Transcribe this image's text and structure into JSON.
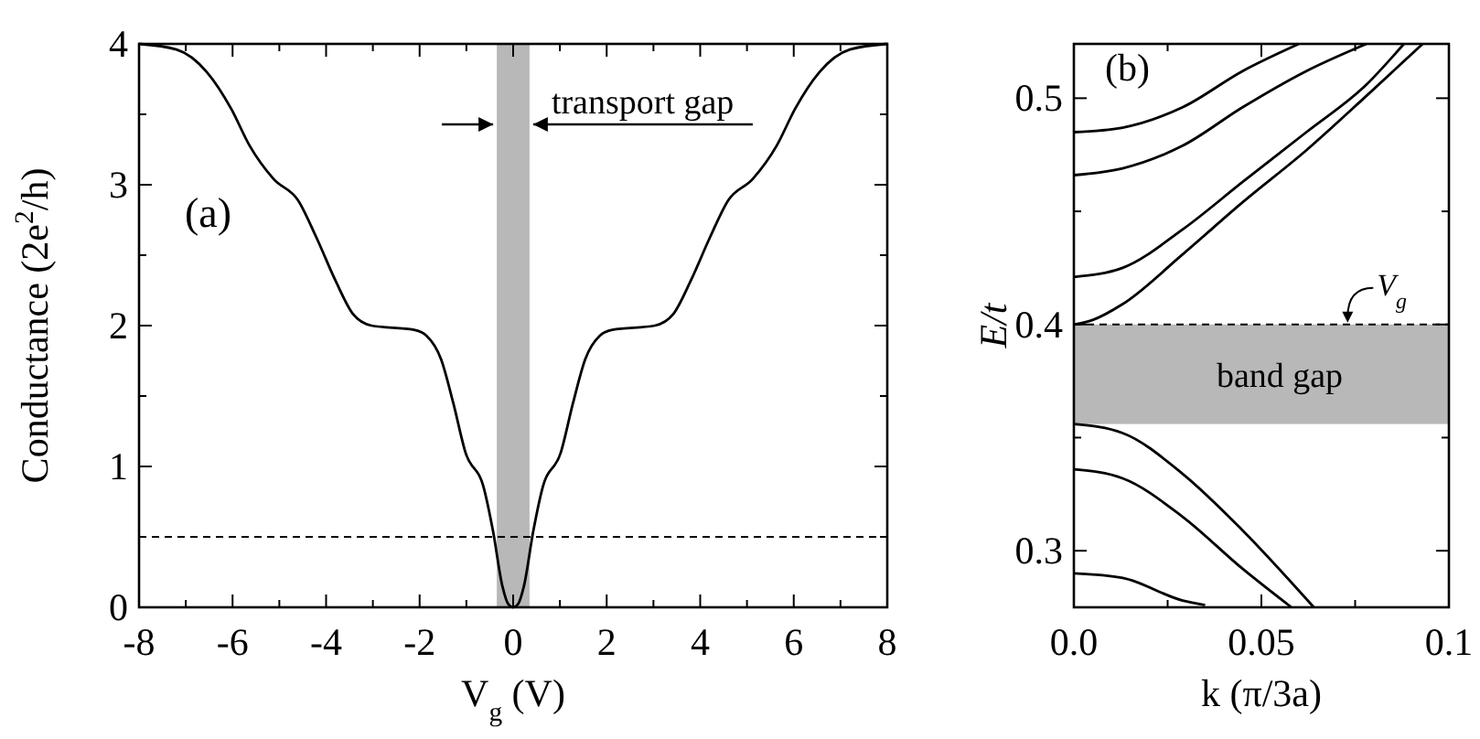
{
  "chart_data": [
    {
      "type": "line",
      "xlabel": "V$_{g}$ (V)",
      "ylabel": "Conductance (2e$^{2}$/h)",
      "x": [
        -8,
        -7.2,
        -6.55,
        -6.03,
        -5.64,
        -5.12,
        -4.6,
        -4.2,
        -3.8,
        -3.42,
        -3.03,
        -2.12,
        -1.86,
        -1.54,
        -1.28,
        -1.02,
        -0.63,
        -0.43,
        -0.23,
        -0.1,
        0,
        0.1,
        0.23,
        0.43,
        0.63,
        1.02,
        1.28,
        1.54,
        1.86,
        2.12,
        3.03,
        3.42,
        3.8,
        4.2,
        4.6,
        5.12,
        5.64,
        6.03,
        6.55,
        7.2,
        8
      ],
      "series": [
        {
          "color": "#000000",
          "values": [
            4.0,
            3.96,
            3.8,
            3.54,
            3.28,
            3.04,
            2.89,
            2.62,
            2.32,
            2.08,
            2.0,
            1.97,
            1.93,
            1.76,
            1.45,
            1.1,
            0.85,
            0.54,
            0.15,
            0.02,
            0,
            0.02,
            0.15,
            0.54,
            0.85,
            1.1,
            1.45,
            1.76,
            1.93,
            1.97,
            2.0,
            2.08,
            2.32,
            2.62,
            2.89,
            3.04,
            3.28,
            3.54,
            3.8,
            3.96,
            4.0
          ]
        }
      ],
      "xlim": [
        -8,
        8
      ],
      "ylim": [
        0,
        4
      ],
      "xticks": [
        -8,
        {
          "value": -7,
          "label": null
        },
        -6,
        {
          "value": -5,
          "label": null
        },
        -4,
        {
          "value": -3,
          "label": null
        },
        -2,
        {
          "value": -1,
          "label": null
        },
        0,
        {
          "value": 1,
          "label": null
        },
        2,
        {
          "value": 3,
          "label": null
        },
        4,
        {
          "value": 5,
          "label": null
        },
        6,
        {
          "value": 7,
          "label": null
        },
        8
      ],
      "yticks": [
        0,
        {
          "value": 0.5,
          "label": null
        },
        1,
        {
          "value": 1.5,
          "label": null
        },
        2,
        {
          "value": 2.5,
          "label": null
        },
        3,
        {
          "value": 3.5,
          "label": null
        },
        4
      ],
      "ref_lines": [
        {
          "axis": "y",
          "value": 0.5,
          "line_style": "dashed",
          "color": "#000000"
        }
      ],
      "bands": [
        {
          "axis": "x",
          "from": -0.35,
          "to": 0.35,
          "label": "transport gap",
          "color": "#b8b8b8"
        }
      ],
      "annotations": [
        "(a)"
      ],
      "grid": false,
      "marker": "none",
      "line_style": "solid"
    },
    {
      "type": "line",
      "xlabel": "k (π/3a)",
      "ylabel": "E/t",
      "series": [
        {
          "color": "#000000",
          "x": [
            0,
            0.013,
            0.029,
            0.045,
            0.06
          ],
          "values": [
            0.485,
            0.487,
            0.496,
            0.512,
            0.524
          ]
        },
        {
          "color": "#000000",
          "x": [
            0,
            0.013,
            0.029,
            0.045,
            0.062,
            0.078
          ],
          "values": [
            0.466,
            0.469,
            0.479,
            0.496,
            0.512,
            0.524
          ]
        },
        {
          "color": "#000000",
          "x": [
            0,
            0.013,
            0.029,
            0.045,
            0.062,
            0.078,
            0.088
          ],
          "values": [
            0.421,
            0.425,
            0.442,
            0.463,
            0.485,
            0.506,
            0.524
          ]
        },
        {
          "color": "#000000",
          "x": [
            0,
            0.005,
            0.013,
            0.029,
            0.045,
            0.062,
            0.078,
            0.093
          ],
          "values": [
            0.4,
            0.402,
            0.409,
            0.431,
            0.454,
            0.477,
            0.501,
            0.524
          ]
        },
        {
          "color": "#000000",
          "x": [
            0,
            0.013,
            0.029,
            0.045,
            0.064
          ],
          "values": [
            0.356,
            0.352,
            0.334,
            0.309,
            0.275
          ]
        },
        {
          "color": "#000000",
          "x": [
            0,
            0.013,
            0.029,
            0.045,
            0.058
          ],
          "values": [
            0.336,
            0.332,
            0.315,
            0.292,
            0.275
          ]
        },
        {
          "color": "#000000",
          "x": [
            0,
            0.013,
            0.029,
            0.035
          ],
          "values": [
            0.29,
            0.288,
            0.278,
            0.276
          ]
        }
      ],
      "xlim": [
        0,
        0.1
      ],
      "ylim": [
        0.275,
        0.524
      ],
      "xticks": [
        {
          "value": 0,
          "label": "0.0"
        },
        {
          "value": 0.025,
          "label": null
        },
        0.05,
        {
          "value": 0.075,
          "label": null
        },
        0.1
      ],
      "yticks": [
        0.3,
        {
          "value": 0.35,
          "label": null
        },
        0.4,
        {
          "value": 0.45,
          "label": null
        },
        0.5
      ],
      "ref_lines": [
        {
          "axis": "y",
          "value": 0.4,
          "label": "V$_{g}$",
          "line_style": "dashed",
          "color": "#000000"
        }
      ],
      "bands": [
        {
          "axis": "y",
          "from": 0.356,
          "to": 0.4,
          "label": "band gap",
          "color": "#b8b8b8"
        }
      ],
      "annotations": [
        "(b)"
      ],
      "grid": false,
      "marker": "none",
      "line_style": "solid"
    }
  ]
}
